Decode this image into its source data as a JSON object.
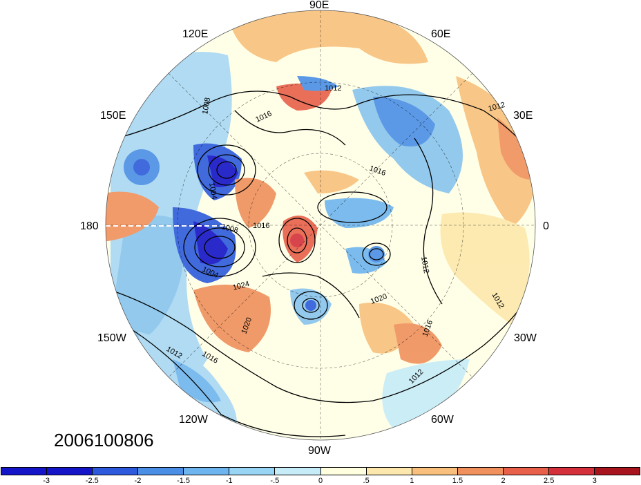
{
  "date_label": "2006100806",
  "longitude_labels": {
    "e90": "90E",
    "e120": "120E",
    "e60": "60E",
    "e150": "150E",
    "e30": "30E",
    "lon180": "180",
    "lon0": "0",
    "w150": "150W",
    "w30": "30W",
    "w120": "120W",
    "w60": "60W",
    "w90": "90W"
  },
  "contour_labels": {
    "c1": "1012",
    "c2": "1012",
    "c3": "1016",
    "c4": "1016",
    "c5": "1008",
    "c6": "1004",
    "c7": "1008",
    "c8": "1016",
    "c9": "1004",
    "c10": "1024",
    "c11": "1020",
    "c12": "1020",
    "c13": "1012",
    "c14": "1012",
    "c15": "1016",
    "c16": "1012",
    "c17": "1012",
    "c18": "1016"
  },
  "colorbar": {
    "tick_labels": [
      "-3",
      "-2.5",
      "-2",
      "-1.5",
      "-1",
      "-.5",
      "0",
      ".5",
      "1",
      "1.5",
      "2",
      "2.5",
      "3"
    ],
    "colors": [
      "#1414c8",
      "#2d5adc",
      "#4a8ee6",
      "#6eb4ee",
      "#98d4f4",
      "#c6ecf8",
      "#ffffe0",
      "#fce8ac",
      "#f8c07c",
      "#f0905c",
      "#e8604a",
      "#d4303c",
      "#a8141e"
    ]
  }
}
